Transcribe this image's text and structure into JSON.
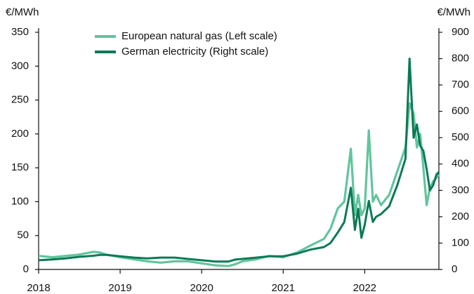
{
  "chart_data": {
    "type": "line",
    "y_label": "€/MWh",
    "y2_label": "€/MWh",
    "x": [
      2018.0,
      2018.17,
      2018.33,
      2018.5,
      2018.67,
      2018.75,
      2018.83,
      2019.0,
      2019.17,
      2019.33,
      2019.5,
      2019.67,
      2019.83,
      2020.0,
      2020.17,
      2020.33,
      2020.42,
      2020.5,
      2020.67,
      2020.83,
      2021.0,
      2021.17,
      2021.33,
      2021.5,
      2021.58,
      2021.67,
      2021.75,
      2021.83,
      2021.88,
      2021.92,
      2021.96,
      2022.0,
      2022.05,
      2022.1,
      2022.14,
      2022.2,
      2022.3,
      2022.4,
      2022.5,
      2022.55,
      2022.6,
      2022.64,
      2022.68,
      2022.72,
      2022.76,
      2022.8,
      2022.84,
      2022.88,
      2022.91
    ],
    "series": [
      {
        "name": "European natural gas (Left scale)",
        "color": "#62c49d",
        "axis": "y",
        "values": [
          20,
          18,
          20,
          22,
          26,
          25,
          22,
          18,
          15,
          12,
          10,
          12,
          12,
          9,
          6,
          5,
          8,
          12,
          15,
          20,
          18,
          25,
          35,
          45,
          60,
          90,
          100,
          178,
          80,
          110,
          80,
          90,
          205,
          100,
          110,
          95,
          110,
          145,
          180,
          245,
          230,
          180,
          200,
          150,
          95,
          120,
          130,
          135,
          140
        ]
      },
      {
        "name": "German electricity (Right scale)",
        "color": "#0b7a55",
        "axis": "y2",
        "values": [
          35,
          38,
          42,
          48,
          52,
          55,
          55,
          50,
          45,
          42,
          45,
          45,
          40,
          35,
          30,
          30,
          38,
          40,
          45,
          50,
          50,
          60,
          75,
          85,
          100,
          140,
          180,
          310,
          150,
          230,
          120,
          170,
          260,
          180,
          200,
          210,
          240,
          320,
          420,
          800,
          500,
          550,
          470,
          450,
          380,
          300,
          320,
          360,
          370
        ]
      }
    ],
    "xlim": [
      2018,
      2022.91
    ],
    "xticks": [
      2018,
      2019,
      2020,
      2021,
      2022
    ],
    "ylim": [
      0,
      350
    ],
    "yticks": [
      0,
      50,
      100,
      150,
      200,
      250,
      300,
      350
    ],
    "y2lim": [
      0,
      900
    ],
    "y2ticks": [
      0,
      100,
      200,
      300,
      400,
      500,
      600,
      700,
      800,
      900
    ],
    "grid": false,
    "legend": "top-left"
  }
}
